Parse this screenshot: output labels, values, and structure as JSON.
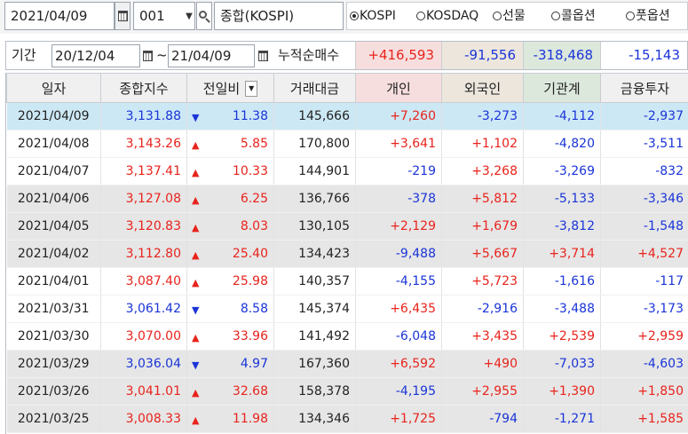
{
  "toolbar": {
    "date": "2021/04/09",
    "code": "001",
    "name": "종합(KOSPI)",
    "markets": [
      {
        "label": "KOSPI",
        "selected": true
      },
      {
        "label": "KOSDAQ",
        "selected": false
      },
      {
        "label": "선물",
        "selected": false
      },
      {
        "label": "콜옵션",
        "selected": false
      },
      {
        "label": "풋옵션",
        "selected": false
      }
    ]
  },
  "period": {
    "label": "기간",
    "from": "20/12/04",
    "tilde": "~",
    "to": "21/04/09",
    "cum_label": "누적순매수",
    "cum_individual": "+416,593",
    "cum_foreign": "-91,556",
    "cum_institution": "-318,468",
    "cum_finance": "-15,143"
  },
  "columns": [
    "일자",
    "종합지수",
    "전일비",
    "거래대금",
    "개인",
    "외국인",
    "기관계",
    "금융투자"
  ],
  "colors": {
    "up": "#e8231c",
    "down": "#1a34d8",
    "selected_row": "#cde8f5",
    "gray_row": "#e6e6e6",
    "individual_hdr": "#f7dede",
    "foreign_hdr": "#ece6dd",
    "institution_hdr": "#dde8dd"
  },
  "rows": [
    {
      "date": "2021/04/09",
      "index": "3,131.88",
      "dir": "down",
      "change": "11.38",
      "volume": "145,666",
      "individual": "+7,260",
      "foreign": "-3,273",
      "institution": "-4,112",
      "finance": "-2,937"
    },
    {
      "date": "2021/04/08",
      "index": "3,143.26",
      "dir": "up",
      "change": "5.85",
      "volume": "170,800",
      "individual": "+3,641",
      "foreign": "+1,102",
      "institution": "-4,820",
      "finance": "-3,511"
    },
    {
      "date": "2021/04/07",
      "index": "3,137.41",
      "dir": "up",
      "change": "10.33",
      "volume": "144,901",
      "individual": "-219",
      "foreign": "+3,268",
      "institution": "-3,269",
      "finance": "-832"
    },
    {
      "date": "2021/04/06",
      "index": "3,127.08",
      "dir": "up",
      "change": "6.25",
      "volume": "136,766",
      "individual": "-378",
      "foreign": "+5,812",
      "institution": "-5,133",
      "finance": "-3,346"
    },
    {
      "date": "2021/04/05",
      "index": "3,120.83",
      "dir": "up",
      "change": "8.03",
      "volume": "130,105",
      "individual": "+2,129",
      "foreign": "+1,679",
      "institution": "-3,812",
      "finance": "-1,548"
    },
    {
      "date": "2021/04/02",
      "index": "3,112.80",
      "dir": "up",
      "change": "25.40",
      "volume": "134,423",
      "individual": "-9,488",
      "foreign": "+5,667",
      "institution": "+3,714",
      "finance": "+4,527"
    },
    {
      "date": "2021/04/01",
      "index": "3,087.40",
      "dir": "up",
      "change": "25.98",
      "volume": "140,357",
      "individual": "-4,155",
      "foreign": "+5,723",
      "institution": "-1,616",
      "finance": "-117"
    },
    {
      "date": "2021/03/31",
      "index": "3,061.42",
      "dir": "down",
      "change": "8.58",
      "volume": "145,374",
      "individual": "+6,435",
      "foreign": "-2,916",
      "institution": "-3,488",
      "finance": "-3,173"
    },
    {
      "date": "2021/03/30",
      "index": "3,070.00",
      "dir": "up",
      "change": "33.96",
      "volume": "141,492",
      "individual": "-6,048",
      "foreign": "+3,435",
      "institution": "+2,539",
      "finance": "+2,959"
    },
    {
      "date": "2021/03/29",
      "index": "3,036.04",
      "dir": "down",
      "change": "4.97",
      "volume": "167,360",
      "individual": "+6,592",
      "foreign": "+490",
      "institution": "-7,033",
      "finance": "-4,603"
    },
    {
      "date": "2021/03/26",
      "index": "3,041.01",
      "dir": "up",
      "change": "32.68",
      "volume": "158,378",
      "individual": "-4,195",
      "foreign": "+2,955",
      "institution": "+1,390",
      "finance": "+1,850"
    },
    {
      "date": "2021/03/25",
      "index": "3,008.33",
      "dir": "up",
      "change": "11.98",
      "volume": "134,346",
      "individual": "+1,725",
      "foreign": "-794",
      "institution": "-1,271",
      "finance": "+1,585"
    }
  ]
}
